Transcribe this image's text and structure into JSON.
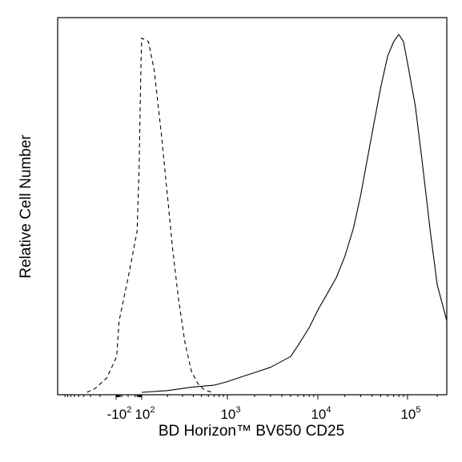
{
  "chart_data": {
    "type": "line",
    "title": "",
    "xlabel": "BD Horizon™ BV650 CD25",
    "ylabel": "Relative Cell Number",
    "x_scale": "biexponential (logicle)",
    "xlim": [
      -1000,
      250000
    ],
    "ylim": [
      0,
      1
    ],
    "grid": false,
    "legend": "none",
    "x_ticks": [
      {
        "value": -100,
        "base": "-10",
        "exp": "2"
      },
      {
        "value": 100,
        "base": "10",
        "exp": "2"
      },
      {
        "value": 1000,
        "base": "10",
        "exp": "3"
      },
      {
        "value": 10000,
        "base": "10",
        "exp": "4"
      },
      {
        "value": 100000,
        "base": "10",
        "exp": "5"
      }
    ],
    "x_minor_ticks": [
      -900,
      -800,
      -700,
      -600,
      -500,
      -400,
      -300,
      -200,
      -90,
      -80,
      -70,
      -60,
      -50,
      -40,
      -30,
      -20,
      -10,
      0,
      10,
      20,
      30,
      40,
      50,
      60,
      70,
      80,
      90,
      200,
      300,
      400,
      500,
      600,
      700,
      800,
      900,
      2000,
      3000,
      4000,
      5000,
      6000,
      7000,
      8000,
      9000,
      20000,
      30000,
      40000,
      50000,
      60000,
      70000,
      80000,
      90000,
      200000
    ],
    "series": [
      {
        "style": "dashed",
        "color": "#000000",
        "x": [
          -350,
          -250,
          -150,
          -80,
          -30,
          0,
          20,
          40,
          60,
          80,
          100,
          120,
          140,
          170,
          200,
          230,
          270,
          320,
          380,
          450,
          520,
          600,
          680
        ],
        "y": [
          0.0,
          0.01,
          0.04,
          0.1,
          0.2,
          0.32,
          0.45,
          0.62,
          0.8,
          0.93,
          0.99,
          0.98,
          0.9,
          0.72,
          0.55,
          0.4,
          0.26,
          0.14,
          0.06,
          0.025,
          0.01,
          0.003,
          0.0
        ]
      },
      {
        "style": "solid",
        "color": "#000000",
        "x": [
          100,
          200,
          400,
          700,
          1000,
          1500,
          2000,
          3000,
          5000,
          6000,
          8000,
          10000,
          13000,
          16000,
          20000,
          25000,
          30000,
          40000,
          50000,
          60000,
          70000,
          80000,
          90000,
          100000,
          120000,
          140000,
          170000,
          200000,
          250000
        ],
        "y": [
          0.0,
          0.005,
          0.015,
          0.02,
          0.03,
          0.045,
          0.055,
          0.07,
          0.1,
          0.13,
          0.18,
          0.23,
          0.28,
          0.32,
          0.38,
          0.46,
          0.55,
          0.72,
          0.85,
          0.94,
          0.98,
          1.0,
          0.98,
          0.92,
          0.8,
          0.65,
          0.45,
          0.3,
          0.2
        ]
      }
    ]
  }
}
